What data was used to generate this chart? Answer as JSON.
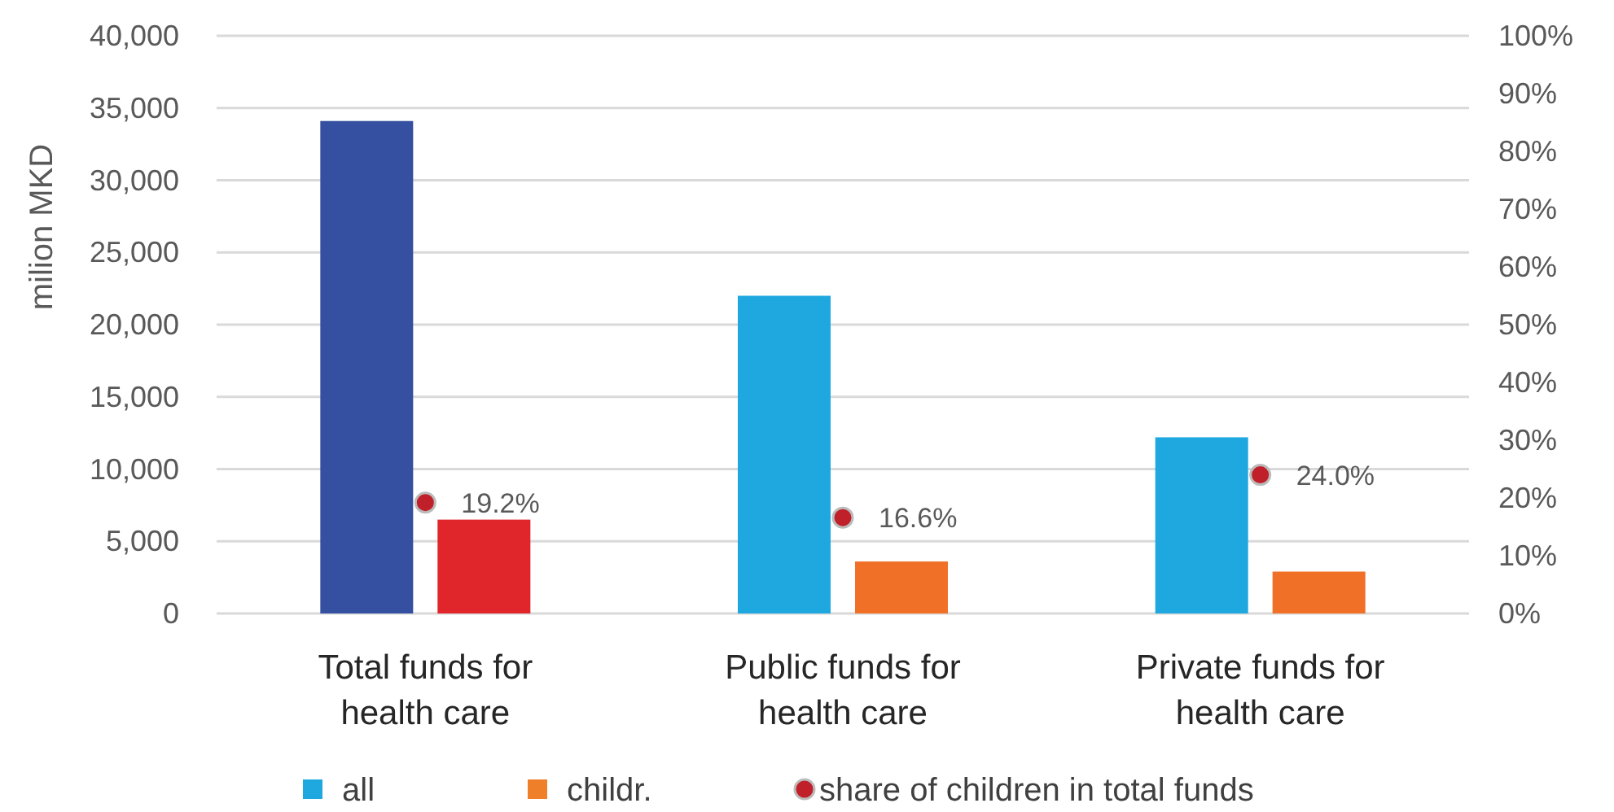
{
  "chart_data": {
    "type": "bar",
    "ylabel": "milion MKD",
    "categories": [
      "Total funds for health care",
      "Public funds for health care",
      "Private funds for health care"
    ],
    "series": [
      {
        "name": "all",
        "color": "#1fa8e0",
        "colors": [
          "#3550a0",
          "#1fa8e0",
          "#1fa8e0"
        ],
        "values": [
          34100,
          22000,
          12200
        ]
      },
      {
        "name": "childr.",
        "color": "#f07f2a",
        "colors": [
          "#e0262a",
          "#f07027",
          "#f07027"
        ],
        "values": [
          6500,
          3600,
          2900
        ]
      },
      {
        "name": "share of children in total funds",
        "type": "scatter",
        "axis": "y2",
        "marker": "circle",
        "color": "#c0202a",
        "values": [
          19.2,
          16.6,
          24.0
        ],
        "value_labels": [
          "19.2%",
          "16.6%",
          "24.0%"
        ]
      }
    ],
    "ylim": [
      0,
      40000
    ],
    "yticks": [
      {
        "value": 0,
        "label": "0"
      },
      {
        "value": 5000,
        "label": "5,000"
      },
      {
        "value": 10000,
        "label": "10,000"
      },
      {
        "value": 15000,
        "label": "15,000"
      },
      {
        "value": 20000,
        "label": "20,000"
      },
      {
        "value": 25000,
        "label": "25,000"
      },
      {
        "value": 30000,
        "label": "30,000"
      },
      {
        "value": 35000,
        "label": "35,000"
      },
      {
        "value": 40000,
        "label": "40,000"
      }
    ],
    "y2lim": [
      0,
      100
    ],
    "y2ticks": [
      {
        "value": 0,
        "label": "0%"
      },
      {
        "value": 10,
        "label": "10%"
      },
      {
        "value": 20,
        "label": "20%"
      },
      {
        "value": 30,
        "label": "30%"
      },
      {
        "value": 40,
        "label": "40%"
      },
      {
        "value": 50,
        "label": "50%"
      },
      {
        "value": 60,
        "label": "60%"
      },
      {
        "value": 70,
        "label": "70%"
      },
      {
        "value": 80,
        "label": "80%"
      },
      {
        "value": 90,
        "label": "90%"
      },
      {
        "value": 100,
        "label": "100%"
      }
    ],
    "grid": "y",
    "legend": "bottom"
  }
}
